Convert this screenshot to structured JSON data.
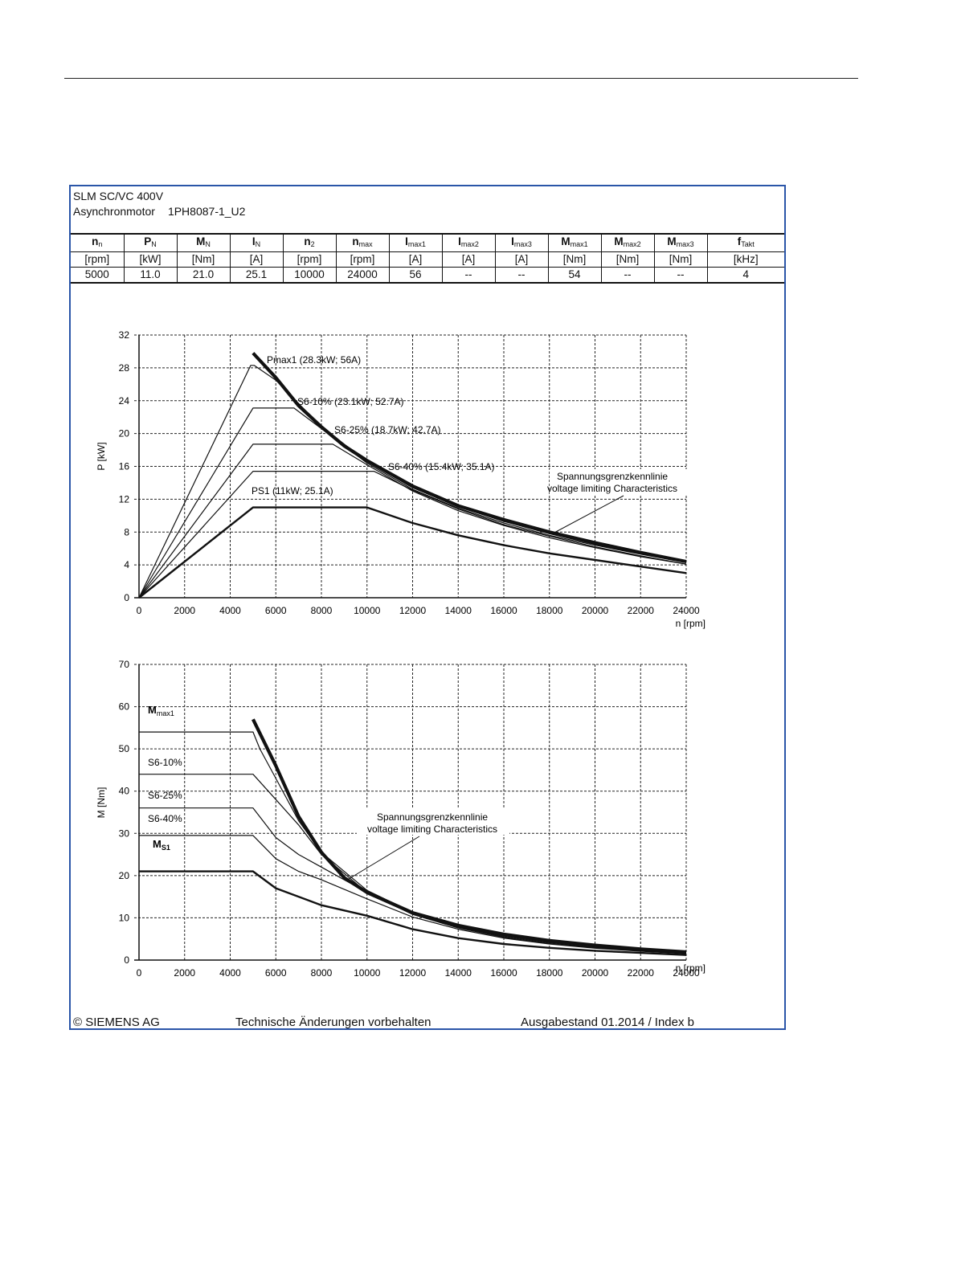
{
  "header": {
    "line1": "SLM SC/VC 400V",
    "line2_label": "Asynchronmotor",
    "line2_code": "1PH8087-1_U2"
  },
  "spec_table": {
    "headers": [
      {
        "main": "n",
        "sub": "n"
      },
      {
        "main": "P",
        "sub": "N"
      },
      {
        "main": "M",
        "sub": "N"
      },
      {
        "main": "I",
        "sub": "N"
      },
      {
        "main": "n",
        "sub": "2"
      },
      {
        "main": "n",
        "sub": "max"
      },
      {
        "main": "I",
        "sub": "max1"
      },
      {
        "main": "I",
        "sub": "max2"
      },
      {
        "main": "I",
        "sub": "max3"
      },
      {
        "main": "M",
        "sub": "max1"
      },
      {
        "main": "M",
        "sub": "max2"
      },
      {
        "main": "M",
        "sub": "max3"
      },
      {
        "main": "f",
        "sub": "Takt"
      }
    ],
    "units": [
      "[rpm]",
      "[kW]",
      "[Nm]",
      "[A]",
      "[rpm]",
      "[rpm]",
      "[A]",
      "[A]",
      "[A]",
      "[Nm]",
      "[Nm]",
      "[Nm]",
      "[kHz]"
    ],
    "values": [
      "5000",
      "11.0",
      "21.0",
      "25.1",
      "10000",
      "24000",
      "56",
      "--",
      "--",
      "54",
      "--",
      "--",
      "4"
    ]
  },
  "chart_data": [
    {
      "type": "line",
      "id": "power",
      "xlabel": "n [rpm]",
      "ylabel": "P [kW]",
      "xlim": [
        0,
        24000
      ],
      "ylim": [
        0,
        32
      ],
      "xticks": [
        0,
        2000,
        4000,
        6000,
        8000,
        10000,
        12000,
        14000,
        16000,
        18000,
        20000,
        22000,
        24000
      ],
      "yticks": [
        0,
        4,
        8,
        12,
        16,
        20,
        24,
        28,
        32
      ],
      "grid": true,
      "series": [
        {
          "name": "Pmax1 (28.3kW; 56A)",
          "weight": "thin",
          "points": [
            [
              0,
              0
            ],
            [
              4900,
              28.3
            ],
            [
              5050,
              28.3
            ],
            [
              6000,
              26.5
            ],
            [
              8000,
              20.8
            ],
            [
              10000,
              16.6
            ],
            [
              12000,
              13.4
            ],
            [
              14000,
              11.1
            ],
            [
              16000,
              9.3
            ],
            [
              18000,
              7.8
            ],
            [
              20000,
              6.5
            ],
            [
              22000,
              5.4
            ],
            [
              24000,
              4.5
            ]
          ]
        },
        {
          "name": "S6-10% (23.1kW; 52.7A)",
          "weight": "thin",
          "points": [
            [
              0,
              0
            ],
            [
              5000,
              23.1
            ],
            [
              6800,
              23.1
            ],
            [
              8000,
              20.6
            ],
            [
              10000,
              16.4
            ],
            [
              12000,
              13.2
            ],
            [
              14000,
              10.9
            ],
            [
              16000,
              9.1
            ],
            [
              18000,
              7.6
            ],
            [
              20000,
              6.4
            ],
            [
              22000,
              5.3
            ],
            [
              24000,
              4.3
            ]
          ]
        },
        {
          "name": "S6-25% (18.7kW; 42.7A)",
          "weight": "thin",
          "points": [
            [
              0,
              0
            ],
            [
              5000,
              18.7
            ],
            [
              8500,
              18.7
            ],
            [
              10000,
              16.2
            ],
            [
              12000,
              13.0
            ],
            [
              14000,
              10.6
            ],
            [
              16000,
              8.8
            ],
            [
              18000,
              7.3
            ],
            [
              20000,
              6.1
            ],
            [
              22000,
              5.0
            ],
            [
              24000,
              4.1
            ]
          ]
        },
        {
          "name": "S6-40% (15.4kW; 35.1A)",
          "weight": "thin",
          "points": [
            [
              0,
              0
            ],
            [
              5000,
              15.4
            ],
            [
              10300,
              15.4
            ],
            [
              12000,
              13.1
            ],
            [
              14000,
              10.8
            ],
            [
              16000,
              8.9
            ],
            [
              18000,
              7.5
            ],
            [
              20000,
              6.2
            ],
            [
              22000,
              5.1
            ],
            [
              24000,
              4.1
            ]
          ]
        },
        {
          "name": "PS1 (11kW; 25.1A)",
          "weight": "bold",
          "points": [
            [
              0,
              0
            ],
            [
              5000,
              11.0
            ],
            [
              10000,
              11.0
            ],
            [
              12000,
              9.1
            ],
            [
              14000,
              7.6
            ],
            [
              16000,
              6.4
            ],
            [
              18000,
              5.4
            ],
            [
              20000,
              4.6
            ],
            [
              22000,
              3.8
            ],
            [
              24000,
              3.0
            ]
          ]
        },
        {
          "name": "Spannungsgrenzkennlinie",
          "weight": "heavy",
          "points": [
            [
              5000,
              29.8
            ],
            [
              6000,
              26.8
            ],
            [
              7000,
              23.4
            ],
            [
              8000,
              20.8
            ],
            [
              9000,
              18.5
            ],
            [
              10000,
              16.7
            ],
            [
              12000,
              13.6
            ],
            [
              14000,
              11.2
            ],
            [
              16000,
              9.5
            ],
            [
              18000,
              8.0
            ],
            [
              20000,
              6.7
            ],
            [
              22000,
              5.5
            ],
            [
              24000,
              4.4
            ]
          ]
        }
      ],
      "annotations": {
        "pmax1": "Pmax1 (28.3kW; 56A)",
        "s6_10": "S6-10% (23.1kW; 52.7A)",
        "s6_25": "S6-25% (18.7kW; 42.7A)",
        "s6_40": "S6-40% (15.4kW; 35.1A)",
        "ps1": "PS1 (11kW; 25.1A)",
        "vlim_de": "Spannungsgrenzkennlinie",
        "vlim_en": "voltage limiting  Characteristics"
      }
    },
    {
      "type": "line",
      "id": "torque",
      "xlabel": "n [rpm]",
      "ylabel": "M [Nm]",
      "xlim": [
        0,
        24000
      ],
      "ylim": [
        0,
        70
      ],
      "xticks": [
        0,
        2000,
        4000,
        6000,
        8000,
        10000,
        12000,
        14000,
        16000,
        18000,
        20000,
        22000,
        24000
      ],
      "yticks": [
        0,
        10,
        20,
        30,
        40,
        50,
        60,
        70
      ],
      "grid": true,
      "series": [
        {
          "name": "Mmax1",
          "weight": "thin",
          "points": [
            [
              0,
              54
            ],
            [
              5000,
              54
            ],
            [
              5300,
              50
            ],
            [
              6000,
              43
            ],
            [
              7000,
              33
            ],
            [
              8000,
              25.5
            ],
            [
              10000,
              16.5
            ],
            [
              12000,
              11.3
            ],
            [
              14000,
              8.0
            ],
            [
              16000,
              5.8
            ],
            [
              18000,
              4.3
            ],
            [
              20000,
              3.2
            ],
            [
              22000,
              2.4
            ],
            [
              24000,
              1.8
            ]
          ]
        },
        {
          "name": "S6-10%",
          "weight": "thin",
          "points": [
            [
              0,
              44
            ],
            [
              5000,
              44
            ],
            [
              6000,
              38
            ],
            [
              7000,
              32
            ],
            [
              8000,
              25
            ],
            [
              10000,
              16
            ],
            [
              12000,
              11
            ],
            [
              14000,
              7.8
            ],
            [
              16000,
              5.6
            ],
            [
              18000,
              4.1
            ],
            [
              20000,
              3.0
            ],
            [
              22000,
              2.3
            ],
            [
              24000,
              1.7
            ]
          ]
        },
        {
          "name": "S6-25%",
          "weight": "thin",
          "points": [
            [
              0,
              36
            ],
            [
              5000,
              36
            ],
            [
              6000,
              29
            ],
            [
              7000,
              25
            ],
            [
              8000,
              22
            ],
            [
              10000,
              16
            ],
            [
              12000,
              10.8
            ],
            [
              14000,
              7.6
            ],
            [
              16000,
              5.4
            ],
            [
              18000,
              3.9
            ],
            [
              20000,
              2.9
            ],
            [
              22000,
              2.2
            ],
            [
              24000,
              1.6
            ]
          ]
        },
        {
          "name": "S6-40%",
          "weight": "thin",
          "points": [
            [
              0,
              29.5
            ],
            [
              5000,
              29.5
            ],
            [
              6000,
              24
            ],
            [
              7000,
              21
            ],
            [
              8000,
              19
            ],
            [
              10000,
              14.5
            ],
            [
              12000,
              10.2
            ],
            [
              14000,
              7.3
            ],
            [
              16000,
              5.2
            ],
            [
              18000,
              3.8
            ],
            [
              20000,
              2.8
            ],
            [
              22000,
              2.1
            ],
            [
              24000,
              1.5
            ]
          ]
        },
        {
          "name": "MS1",
          "weight": "bold",
          "points": [
            [
              0,
              21
            ],
            [
              5000,
              21
            ],
            [
              6000,
              17
            ],
            [
              8000,
              13
            ],
            [
              10000,
              10.5
            ],
            [
              12000,
              7.3
            ],
            [
              14000,
              5.2
            ],
            [
              16000,
              3.8
            ],
            [
              18000,
              2.9
            ],
            [
              20000,
              2.2
            ],
            [
              22000,
              1.7
            ],
            [
              24000,
              1.2
            ]
          ]
        },
        {
          "name": "Spannungsgrenzkennlinie",
          "weight": "heavy",
          "points": [
            [
              5000,
              57
            ],
            [
              6000,
              46
            ],
            [
              7000,
              34
            ],
            [
              8000,
              25.5
            ],
            [
              9000,
              19.5
            ],
            [
              10000,
              16
            ],
            [
              12000,
              11.2
            ],
            [
              14000,
              8.2
            ],
            [
              16000,
              6.1
            ],
            [
              18000,
              4.6
            ],
            [
              20000,
              3.5
            ],
            [
              22000,
              2.6
            ],
            [
              24000,
              1.9
            ]
          ]
        }
      ],
      "annotations": {
        "mmax1_main": "M",
        "mmax1_sub": "max1",
        "s6_10": "S6-10%",
        "s6_25": "S6-25%",
        "s6_40": "S6-40%",
        "ms1_main": "M",
        "ms1_sub": "S1",
        "vlim_de": "Spannungsgrenzkennlinie",
        "vlim_en": "voltage limiting  Characteristics"
      }
    }
  ],
  "footer": {
    "copyright": "© SIEMENS AG",
    "notice": "Technische Änderungen vorbehalten",
    "edition": "Ausgabestand 01.2014 / Index b"
  }
}
